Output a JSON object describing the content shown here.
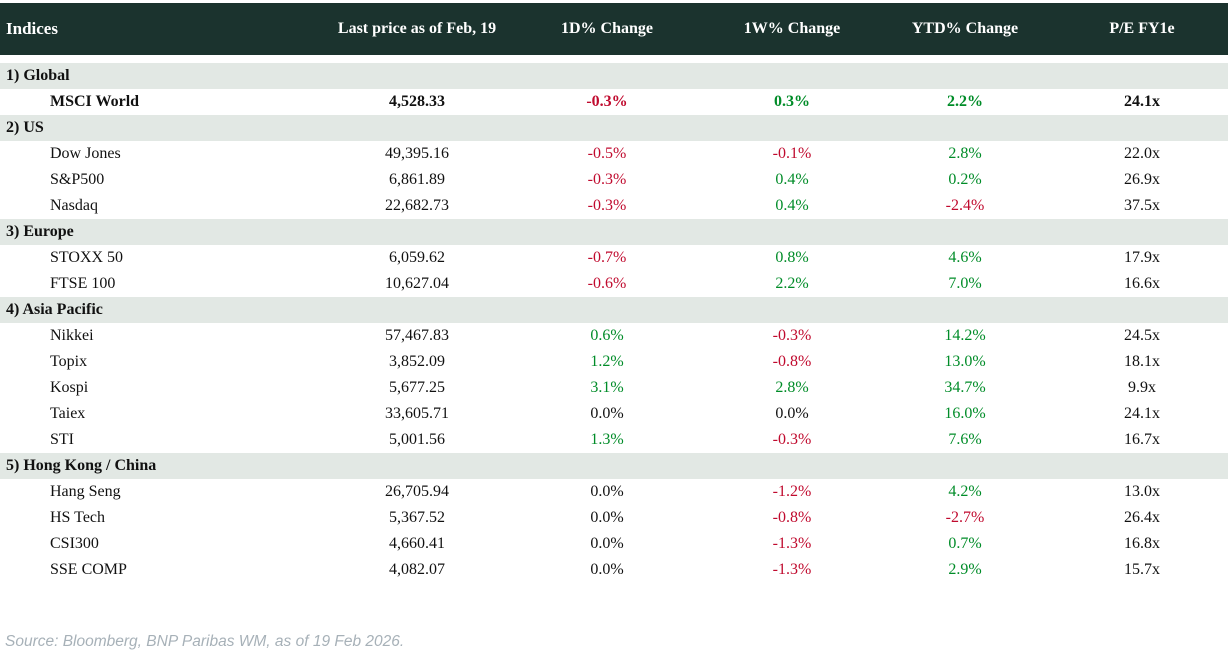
{
  "colors": {
    "header_bg": "#1b332e",
    "section_bg": "#e2e8e4",
    "negative": "#c00a2e",
    "positive": "#008c28",
    "source_text": "#a7b1b8"
  },
  "chart_data": {
    "type": "table",
    "columns": [
      "Indices",
      "Last price as of Feb, 19",
      "1D% Change",
      "1W% Change",
      "YTD% Change",
      "P/E FY1e"
    ],
    "sections": [
      {
        "label": "1) Global",
        "rows": [
          {
            "name": "MSCI World",
            "bold": true,
            "price": "4,528.33",
            "d1": "-0.3%",
            "w1": "0.3%",
            "ytd": "2.2%",
            "pe": "24.1x"
          }
        ]
      },
      {
        "label": "2) US",
        "rows": [
          {
            "name": "Dow Jones",
            "bold": false,
            "price": "49,395.16",
            "d1": "-0.5%",
            "w1": "-0.1%",
            "ytd": "2.8%",
            "pe": "22.0x"
          },
          {
            "name": "S&P500",
            "bold": false,
            "price": "6,861.89",
            "d1": "-0.3%",
            "w1": "0.4%",
            "ytd": "0.2%",
            "pe": "26.9x"
          },
          {
            "name": "Nasdaq",
            "bold": false,
            "price": "22,682.73",
            "d1": "-0.3%",
            "w1": "0.4%",
            "ytd": "-2.4%",
            "pe": "37.5x"
          }
        ]
      },
      {
        "label": "3) Europe",
        "rows": [
          {
            "name": "STOXX 50",
            "bold": false,
            "price": "6,059.62",
            "d1": "-0.7%",
            "w1": "0.8%",
            "ytd": "4.6%",
            "pe": "17.9x"
          },
          {
            "name": "FTSE 100",
            "bold": false,
            "price": "10,627.04",
            "d1": "-0.6%",
            "w1": "2.2%",
            "ytd": "7.0%",
            "pe": "16.6x"
          }
        ]
      },
      {
        "label": "4) Asia Pacific",
        "rows": [
          {
            "name": "Nikkei",
            "bold": false,
            "price": "57,467.83",
            "d1": "0.6%",
            "w1": "-0.3%",
            "ytd": "14.2%",
            "pe": "24.5x"
          },
          {
            "name": "Topix",
            "bold": false,
            "price": "3,852.09",
            "d1": "1.2%",
            "w1": "-0.8%",
            "ytd": "13.0%",
            "pe": "18.1x"
          },
          {
            "name": "Kospi",
            "bold": false,
            "price": "5,677.25",
            "d1": "3.1%",
            "w1": "2.8%",
            "ytd": "34.7%",
            "pe": "9.9x"
          },
          {
            "name": "Taiex",
            "bold": false,
            "price": "33,605.71",
            "d1": "0.0%",
            "w1": "0.0%",
            "ytd": "16.0%",
            "pe": "24.1x"
          },
          {
            "name": "STI",
            "bold": false,
            "price": "5,001.56",
            "d1": "1.3%",
            "w1": "-0.3%",
            "ytd": "7.6%",
            "pe": "16.7x"
          }
        ]
      },
      {
        "label": "5) Hong Kong / China",
        "rows": [
          {
            "name": "Hang Seng",
            "bold": false,
            "price": "26,705.94",
            "d1": "0.0%",
            "w1": "-1.2%",
            "ytd": "4.2%",
            "pe": "13.0x"
          },
          {
            "name": "HS Tech",
            "bold": false,
            "price": "5,367.52",
            "d1": "0.0%",
            "w1": "-0.8%",
            "ytd": "-2.7%",
            "pe": "26.4x"
          },
          {
            "name": "CSI300",
            "bold": false,
            "price": "4,660.41",
            "d1": "0.0%",
            "w1": "-1.3%",
            "ytd": "0.7%",
            "pe": "16.8x"
          },
          {
            "name": "SSE COMP",
            "bold": false,
            "price": "4,082.07",
            "d1": "0.0%",
            "w1": "-1.3%",
            "ytd": "2.9%",
            "pe": "15.7x"
          }
        ]
      }
    ]
  },
  "footer": {
    "source": "Source: Bloomberg, BNP Paribas WM, as of 19 Feb 2026."
  }
}
